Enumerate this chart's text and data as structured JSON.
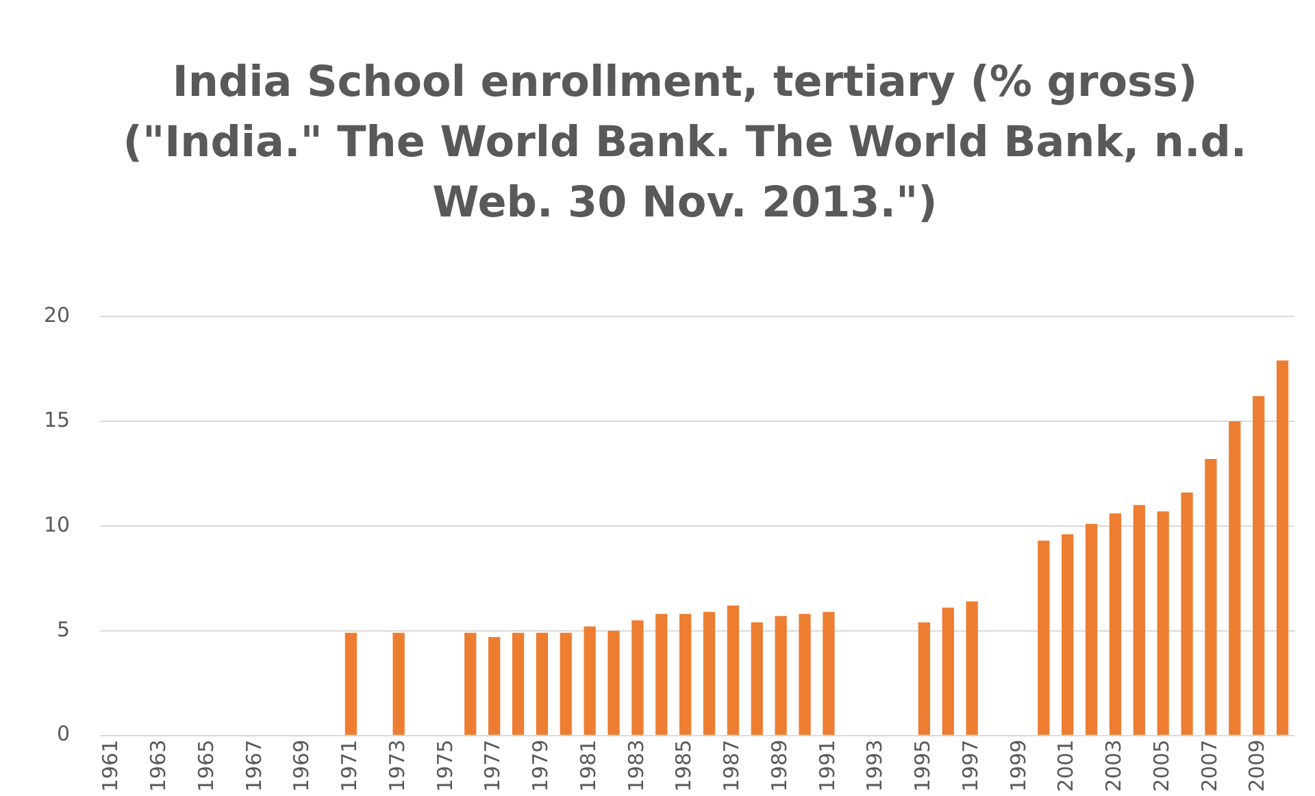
{
  "chart_data": {
    "type": "bar",
    "title": "India School enrollment, tertiary (% gross) (\"India.\" The World Bank. The World Bank, n.d. Web. 30 Nov. 2013.\")",
    "categories": [
      "1961",
      null,
      "1963",
      null,
      "1965",
      null,
      "1967",
      null,
      "1969",
      null,
      "1971",
      null,
      "1973",
      null,
      "1975",
      null,
      "1977",
      null,
      "1979",
      null,
      "1981",
      null,
      "1983",
      null,
      "1985",
      null,
      "1987",
      null,
      "1989",
      null,
      "1991",
      null,
      "1993",
      null,
      "1995",
      null,
      "1997",
      null,
      "1999",
      null,
      "2001",
      null,
      "2003",
      null,
      "2005",
      null,
      "2007",
      null,
      "2009",
      null
    ],
    "values": [
      null,
      null,
      null,
      null,
      null,
      null,
      null,
      null,
      null,
      null,
      4.9,
      null,
      4.9,
      null,
      null,
      4.9,
      4.7,
      4.9,
      4.9,
      4.9,
      5.2,
      5.0,
      5.5,
      5.8,
      5.8,
      5.9,
      6.2,
      5.4,
      5.7,
      5.8,
      5.9,
      null,
      null,
      null,
      5.4,
      6.1,
      6.4,
      null,
      null,
      9.3,
      9.6,
      10.1,
      10.6,
      11.0,
      10.7,
      11.6,
      13.2,
      15.0,
      16.2,
      17.9
    ],
    "color": "#ed7d31",
    "ylim": [
      0,
      20
    ],
    "yticks": [
      0,
      5,
      10,
      15,
      20
    ],
    "grid": "y"
  }
}
